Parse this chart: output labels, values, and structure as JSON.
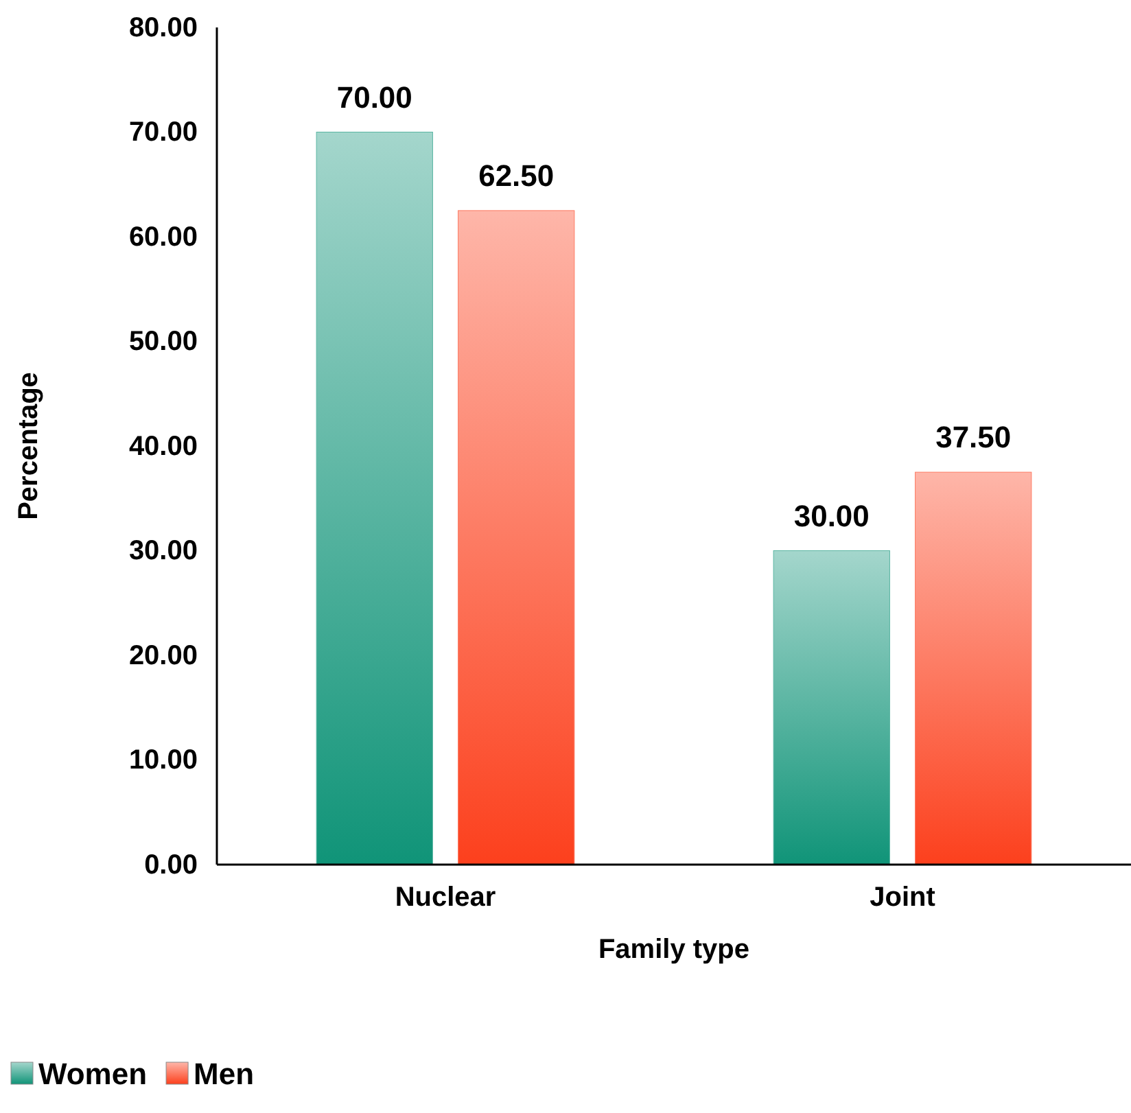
{
  "chart_data": {
    "type": "bar",
    "xlabel": "Family type",
    "ylabel": "Percentage",
    "categories": [
      "Nuclear",
      "Joint"
    ],
    "series": [
      {
        "name": "Women",
        "color": "#5ab5a2",
        "values": [
          70,
          30
        ],
        "value_labels": [
          "70.00",
          "30.00"
        ]
      },
      {
        "name": "Men",
        "color": "#fd7b63",
        "values": [
          62.5,
          37.5
        ],
        "value_labels": [
          "62.50",
          "37.50"
        ]
      }
    ],
    "ylim": [
      0,
      80
    ],
    "yticks": [
      {
        "value": 0,
        "label": "0.00"
      },
      {
        "value": 10,
        "label": "10.00"
      },
      {
        "value": 20,
        "label": "20.00"
      },
      {
        "value": 30,
        "label": "30.00"
      },
      {
        "value": 40,
        "label": "40.00"
      },
      {
        "value": 50,
        "label": "50.00"
      },
      {
        "value": 60,
        "label": "60.00"
      },
      {
        "value": 70,
        "label": "70.00"
      },
      {
        "value": 80,
        "label": "80.00"
      }
    ],
    "grid": false,
    "legend": "bottom left"
  }
}
